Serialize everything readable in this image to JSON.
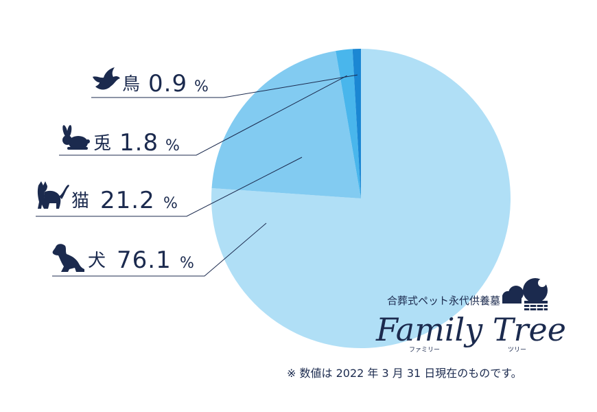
{
  "chart_data": {
    "type": "pie",
    "categories": [
      "犬",
      "猫",
      "兎",
      "鳥"
    ],
    "values": [
      76.1,
      21.2,
      1.8,
      0.9
    ],
    "value_labels": [
      "76.1",
      "21.2",
      "1.8",
      "0.9"
    ],
    "unit": "%",
    "start_angle": "12 o'clock",
    "direction": "clockwise",
    "colors": [
      "#b0dff6",
      "#82cbf1",
      "#49b6ec",
      "#1b87d3"
    ],
    "legend": "none",
    "icons": [
      "dog-icon",
      "cat-icon",
      "rabbit-icon",
      "bird-icon"
    ]
  },
  "brand": {
    "subtitle": "合葬式ペット永代供養墓",
    "name": "Family Tree",
    "ruby_left": "ファミリー",
    "ruby_right": "ツリー",
    "icon": "tree-cloud-icon",
    "color": "#1b2a4e"
  },
  "note": "※ 数値は 2022 年 3 月 31 日現在のものです。"
}
